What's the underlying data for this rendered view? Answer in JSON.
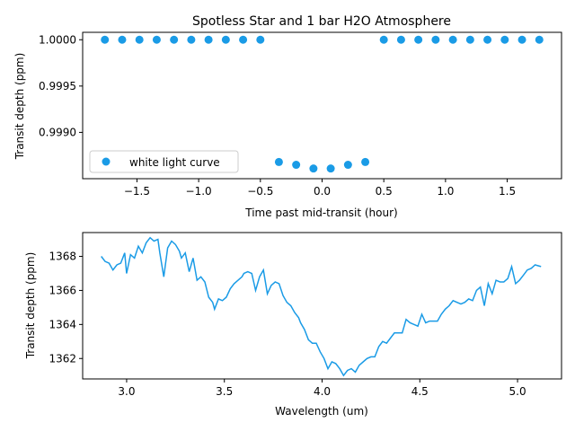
{
  "colors": {
    "series": "#1a9be6"
  },
  "chart_data": [
    {
      "type": "scatter",
      "title": "Spotless Star and 1 bar H2O Atmosphere",
      "xlabel": "Time past mid-transit (hour)",
      "ylabel": "Transit depth (ppm)",
      "xlim": [
        -1.94,
        1.94
      ],
      "ylim": [
        0.9985,
        1.00008
      ],
      "xticks": [
        -1.5,
        -1.0,
        -0.5,
        0.0,
        0.5,
        1.0,
        1.5
      ],
      "xtick_labels": [
        "−1.5",
        "−1.0",
        "−0.5",
        "0.0",
        "0.5",
        "1.0",
        "1.5"
      ],
      "yticks": [
        0.999,
        0.9995,
        1.0
      ],
      "ytick_labels": [
        "0.9990",
        "0.9995",
        "1.0000"
      ],
      "legend": {
        "location": "lower-left",
        "entries": [
          "white light curve"
        ]
      },
      "grid": false,
      "series": [
        {
          "name": "white light curve",
          "x": [
            -1.76,
            -1.62,
            -1.48,
            -1.34,
            -1.2,
            -1.06,
            -0.92,
            -0.78,
            -0.64,
            -0.5,
            -0.35,
            -0.21,
            -0.07,
            0.07,
            0.21,
            0.35,
            0.5,
            0.64,
            0.78,
            0.92,
            1.06,
            1.2,
            1.34,
            1.48,
            1.62,
            1.76
          ],
          "y": [
            1.0,
            1.0,
            1.0,
            1.0,
            1.0,
            1.0,
            1.0,
            1.0,
            1.0,
            1.0,
            0.99868,
            0.99865,
            0.99861,
            0.99861,
            0.99865,
            0.99868,
            1.0,
            1.0,
            1.0,
            1.0,
            1.0,
            1.0,
            1.0,
            1.0,
            1.0,
            1.0
          ]
        }
      ]
    },
    {
      "type": "line",
      "title": "",
      "xlabel": "Wavelength (um)",
      "ylabel": "Transit depth (ppm)",
      "xlim": [
        2.775,
        5.225
      ],
      "ylim": [
        1360.8,
        1369.4
      ],
      "xticks": [
        3.0,
        3.5,
        4.0,
        4.5,
        5.0
      ],
      "xtick_labels": [
        "3.0",
        "3.5",
        "4.0",
        "4.5",
        "5.0"
      ],
      "yticks": [
        1362,
        1364,
        1366,
        1368
      ],
      "ytick_labels": [
        "1362",
        "1364",
        "1366",
        "1368"
      ],
      "grid": false,
      "series": [
        {
          "name": "",
          "x": [
            2.87,
            2.89,
            2.91,
            2.93,
            2.95,
            2.97,
            2.99,
            3.0,
            3.02,
            3.04,
            3.06,
            3.08,
            3.1,
            3.12,
            3.14,
            3.16,
            3.17,
            3.19,
            3.21,
            3.23,
            3.25,
            3.27,
            3.28,
            3.3,
            3.32,
            3.34,
            3.36,
            3.38,
            3.4,
            3.42,
            3.44,
            3.45,
            3.47,
            3.49,
            3.51,
            3.53,
            3.55,
            3.57,
            3.59,
            3.6,
            3.62,
            3.64,
            3.66,
            3.68,
            3.7,
            3.72,
            3.74,
            3.76,
            3.78,
            3.8,
            3.82,
            3.84,
            3.86,
            3.88,
            3.89,
            3.91,
            3.93,
            3.95,
            3.97,
            3.99,
            4.01,
            4.03,
            4.05,
            4.07,
            4.09,
            4.11,
            4.13,
            4.15,
            4.17,
            4.19,
            4.21,
            4.23,
            4.25,
            4.27,
            4.29,
            4.31,
            4.33,
            4.35,
            4.37,
            4.39,
            4.41,
            4.43,
            4.45,
            4.47,
            4.49,
            4.51,
            4.53,
            4.55,
            4.57,
            4.59,
            4.61,
            4.63,
            4.65,
            4.67,
            4.69,
            4.71,
            4.73,
            4.75,
            4.77,
            4.79,
            4.81,
            4.83,
            4.85,
            4.87,
            4.89,
            4.91,
            4.93,
            4.95,
            4.97,
            4.99,
            5.01,
            5.03,
            5.05,
            5.07,
            5.09,
            5.12
          ],
          "y": [
            1368.0,
            1367.7,
            1367.6,
            1367.2,
            1367.5,
            1367.6,
            1368.2,
            1367.0,
            1368.1,
            1367.9,
            1368.6,
            1368.2,
            1368.8,
            1369.1,
            1368.9,
            1369.0,
            1368.2,
            1366.8,
            1368.5,
            1368.9,
            1368.7,
            1368.3,
            1367.9,
            1368.2,
            1367.1,
            1367.9,
            1366.6,
            1366.8,
            1366.5,
            1365.6,
            1365.3,
            1364.9,
            1365.5,
            1365.4,
            1365.6,
            1366.1,
            1366.4,
            1366.6,
            1366.8,
            1367.0,
            1367.1,
            1367.0,
            1366.0,
            1366.8,
            1367.2,
            1365.8,
            1366.3,
            1366.5,
            1366.4,
            1365.7,
            1365.3,
            1365.1,
            1364.7,
            1364.4,
            1364.1,
            1363.7,
            1363.1,
            1362.9,
            1362.9,
            1362.4,
            1362.0,
            1361.4,
            1361.8,
            1361.7,
            1361.4,
            1361.0,
            1361.3,
            1361.4,
            1361.2,
            1361.6,
            1361.8,
            1362.0,
            1362.1,
            1362.1,
            1362.7,
            1363.0,
            1362.9,
            1363.2,
            1363.5,
            1363.5,
            1363.5,
            1364.3,
            1364.1,
            1364.0,
            1363.9,
            1364.6,
            1364.1,
            1364.2,
            1364.2,
            1364.2,
            1364.6,
            1364.9,
            1365.1,
            1365.4,
            1365.3,
            1365.2,
            1365.3,
            1365.5,
            1365.4,
            1366.0,
            1366.2,
            1365.1,
            1366.4,
            1365.8,
            1366.6,
            1366.5,
            1366.5,
            1366.7,
            1367.4,
            1366.4,
            1366.6,
            1366.9,
            1367.2,
            1367.3,
            1367.5,
            1367.4
          ]
        }
      ]
    }
  ]
}
